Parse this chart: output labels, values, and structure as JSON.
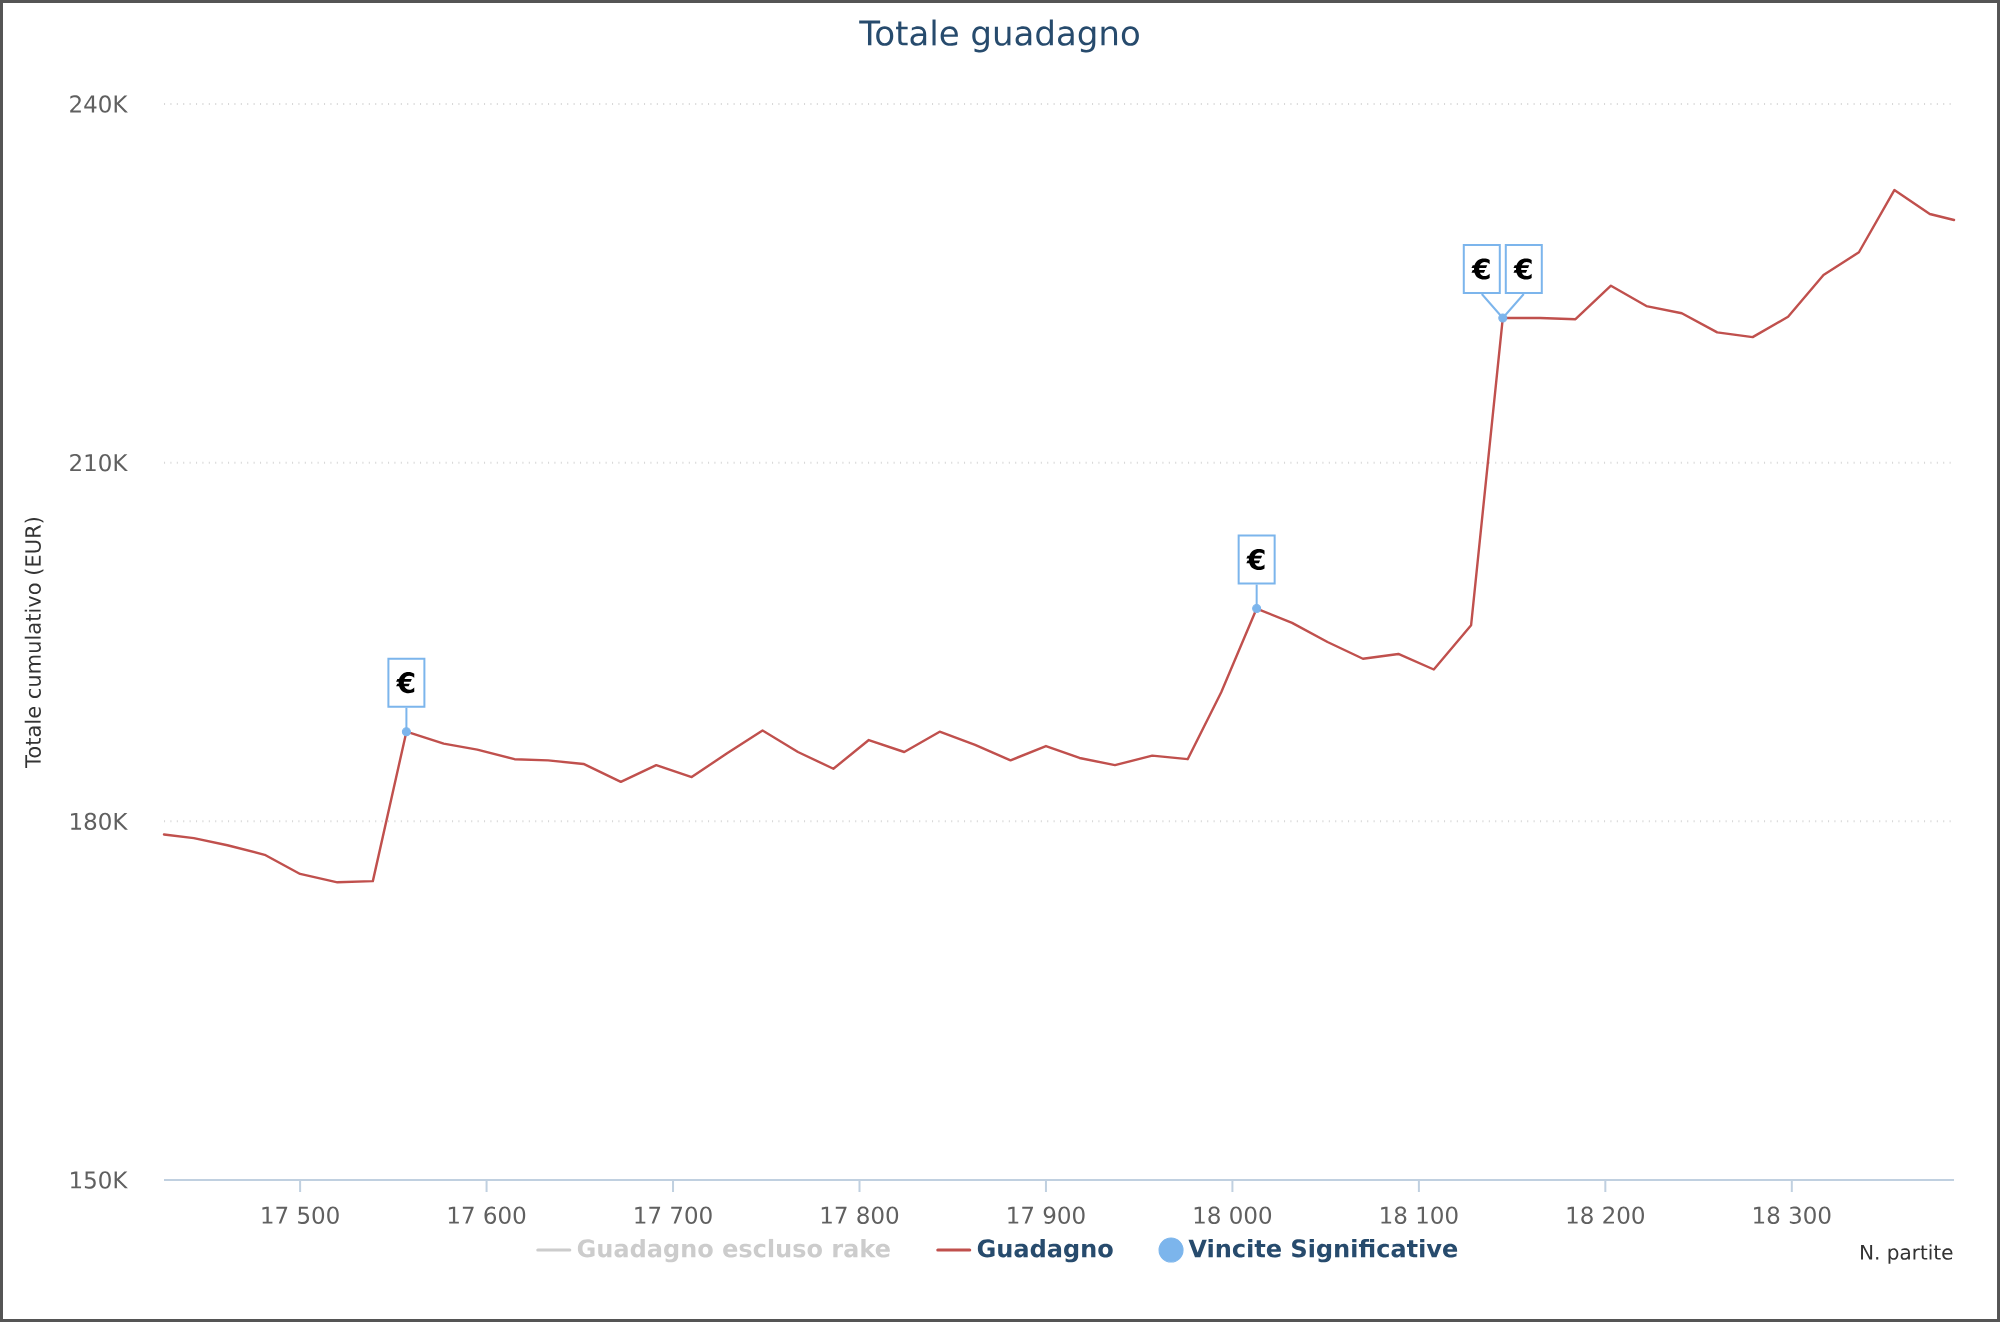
{
  "chart_data": {
    "type": "line",
    "title": "Totale guadagno",
    "xlabel": "N. partite",
    "ylabel": "Totale cumulativo (EUR)",
    "xlim": [
      17427,
      18387
    ],
    "xticks": [
      {
        "value": 17500,
        "label": "17 500"
      },
      {
        "value": 17600,
        "label": "17 600"
      },
      {
        "value": 17700,
        "label": "17 700"
      },
      {
        "value": 17800,
        "label": "17 800"
      },
      {
        "value": 17900,
        "label": "17 900"
      },
      {
        "value": 18000,
        "label": "18 000"
      },
      {
        "value": 18100,
        "label": "18 100"
      },
      {
        "value": 18200,
        "label": "18 200"
      },
      {
        "value": 18300,
        "label": "18 300"
      }
    ],
    "ylim": [
      150000,
      240000
    ],
    "yticks": [
      {
        "value": 150000,
        "label": "150K"
      },
      {
        "value": 180000,
        "label": "180K"
      },
      {
        "value": 210000,
        "label": "210K"
      },
      {
        "value": 240000,
        "label": "240K"
      }
    ],
    "grid": "y",
    "legend": "bottom",
    "series": [
      {
        "name": "Guadagno escluso rake",
        "color": "#cccccc"
      },
      {
        "name": "Guadagno",
        "color": "#c0504d",
        "x": [
          17427,
          17443,
          17461,
          17481,
          17500,
          17520,
          17539,
          17557,
          17577,
          17595,
          17615,
          17633,
          17652,
          17672,
          17691,
          17710,
          17729,
          17748,
          17767,
          17786,
          17805,
          17824,
          17843,
          17862,
          17881,
          17900,
          17918,
          17937,
          17957,
          17976,
          17994,
          18013,
          18032,
          18051,
          18070,
          18089,
          18108,
          18128,
          18145,
          18165,
          18184,
          18203,
          18222,
          18241,
          18260,
          18279,
          18298,
          18317,
          18336,
          18355,
          18374,
          18387
        ],
        "values": [
          178900,
          178600,
          178000,
          177200,
          175600,
          174900,
          175000,
          187500,
          186500,
          186000,
          185200,
          185100,
          184800,
          183300,
          184700,
          183700,
          185700,
          187600,
          185800,
          184400,
          186800,
          185800,
          187500,
          186400,
          185100,
          186300,
          185300,
          184700,
          185500,
          185200,
          190800,
          197800,
          196600,
          195000,
          193600,
          194000,
          192700,
          196400,
          222100,
          222100,
          222000,
          224800,
          223100,
          222500,
          220900,
          220500,
          222200,
          225700,
          227600,
          232800,
          230800,
          230300
        ]
      },
      {
        "name": "Vincite Significative",
        "type": "scatter",
        "marker": "circle",
        "color": "#7cb5ec",
        "x": [
          17557,
          18013,
          18145
        ],
        "values": [
          187500,
          197800,
          222100
        ]
      }
    ],
    "annotations": [
      {
        "text": "€",
        "x": 17557,
        "y": 187500
      },
      {
        "text": "€",
        "x": 18013,
        "y": 197800
      },
      {
        "text": "€",
        "x": 18145,
        "y": 222100
      },
      {
        "text": "€",
        "x": 18145,
        "y": 222100
      }
    ]
  }
}
